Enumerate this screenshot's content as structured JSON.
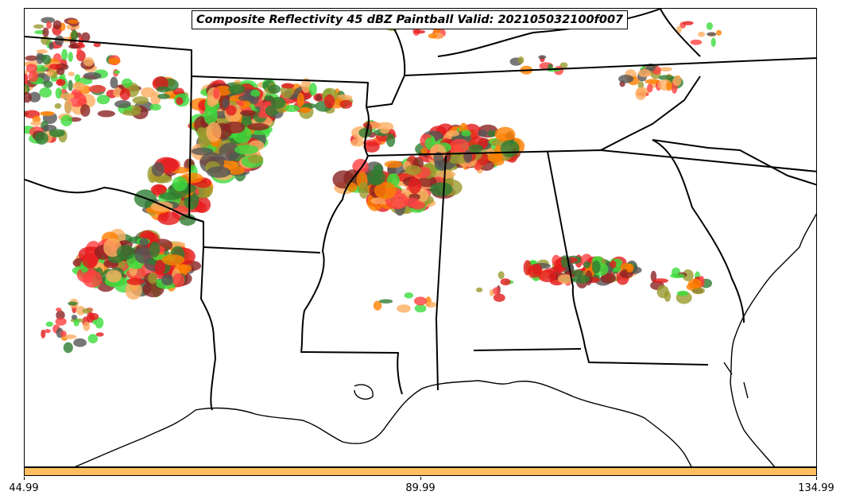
{
  "title": "Composite Reflectivity 45 dBZ Paintball Valid: 202105032100f007",
  "colorbar": {
    "color": "#ffbf5f",
    "tick_labels": [
      "44.99",
      "89.99",
      "134.99"
    ]
  },
  "member_colors": [
    "#e31a1c",
    "#ff7f00",
    "#fdae61",
    "#3cdc3c",
    "#2e7d32",
    "#8b2323",
    "#9a9a2e",
    "#555555",
    "#ff4040"
  ],
  "map": {
    "features": [
      "state borders",
      "coastline",
      "storm paintballs"
    ]
  }
}
